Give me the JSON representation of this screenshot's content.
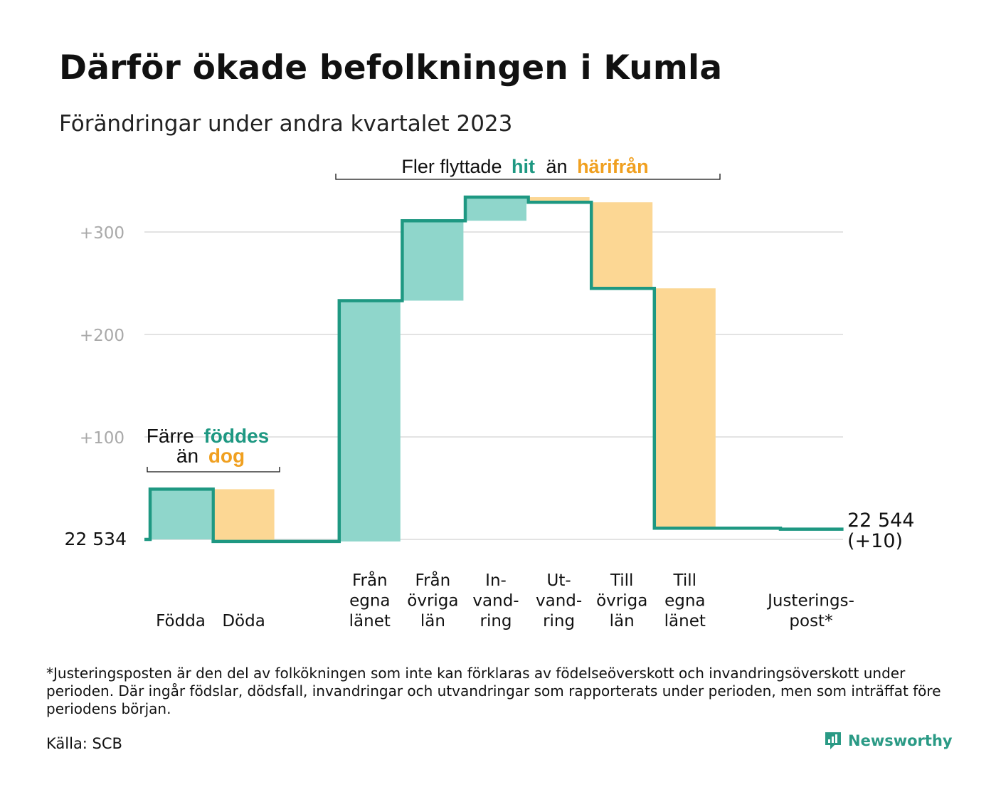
{
  "title": "Därför ökade befolkningen i Kumla",
  "subtitle": "Förändringar under andra kvartalet 2023",
  "colors": {
    "increase": "#8fd6cb",
    "decrease": "#fcd794",
    "line": "#1e9882",
    "grid": "#e3e3e3",
    "tick": "#a9a9a9"
  },
  "annotations": {
    "births_deaths": {
      "line1_a": "Färre",
      "line1_b": "föddes",
      "line2_a": "än",
      "line2_b": "dog"
    },
    "migration": {
      "a": "Fler flyttade",
      "b": "hit",
      "c": "än",
      "d": "härifrån"
    }
  },
  "chart_data": {
    "type": "waterfall",
    "title": "Därför ökade befolkningen i Kumla",
    "subtitle": "Förändringar under andra kvartalet 2023",
    "start_value": 22534,
    "start_label": "22  534",
    "end_value": 22544,
    "end_label_line1": "22 544",
    "end_label_line2": "(+10)",
    "ylim": [
      0,
      335
    ],
    "yticks": [
      {
        "value": 100,
        "label": "+100"
      },
      {
        "value": 200,
        "label": "+200"
      },
      {
        "value": 300,
        "label": "+300"
      }
    ],
    "grid": true,
    "steps": [
      {
        "lines": [
          "Födda"
        ],
        "change": 49
      },
      {
        "lines": [
          "Döda"
        ],
        "change": -51
      },
      {
        "lines": [],
        "change": 0,
        "gap": true
      },
      {
        "lines": [
          "Från",
          "egna",
          "länet"
        ],
        "change": 235
      },
      {
        "lines": [
          "Från",
          "övriga",
          "län"
        ],
        "change": 78
      },
      {
        "lines": [
          "In-",
          "vand-",
          "ring"
        ],
        "change": 23
      },
      {
        "lines": [
          "Ut-",
          "vand-",
          "ring"
        ],
        "change": -5
      },
      {
        "lines": [
          "Till",
          "övriga",
          "län"
        ],
        "change": -84
      },
      {
        "lines": [
          "Till",
          "egna",
          "länet"
        ],
        "change": -234
      },
      {
        "lines": [],
        "change": 0,
        "gap": true
      },
      {
        "lines": [
          "Justerings-",
          "post*"
        ],
        "change": -1
      }
    ]
  },
  "footnote": "*Justeringsposten är den del av folkökningen som inte kan förklaras av födelseöverskott och invandringsöverskott under perioden. Där ingår födslar, dödsfall, invandringar och utvandringar som rapporterats under perioden, men som inträffat före periodens början.",
  "source": "Källa: SCB",
  "brand": {
    "name": "Newsworthy",
    "icon": "newsworthy-logo-icon"
  }
}
